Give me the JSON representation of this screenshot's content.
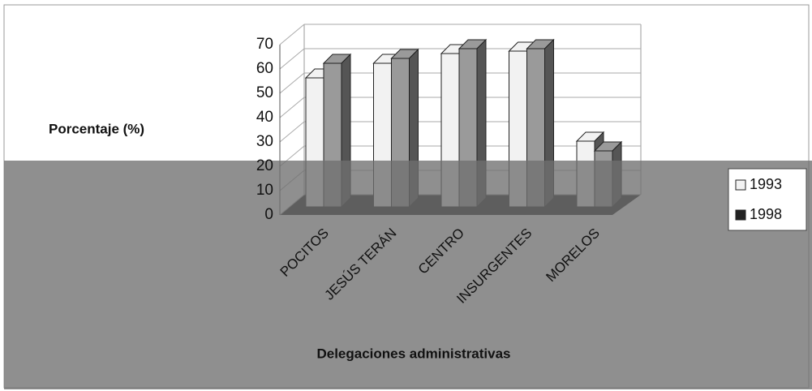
{
  "chart_data": {
    "type": "bar3d",
    "categories": [
      "POCITOS",
      "JESÚS TERÁN",
      "CENTRO",
      "INSURGENTES",
      "MORELOS"
    ],
    "series": [
      {
        "name": "1993",
        "color": "#f2f2f2",
        "values": [
          53,
          59,
          63,
          64,
          27
        ]
      },
      {
        "name": "1998",
        "color": "#9a9a9a",
        "values": [
          59,
          61,
          65,
          65,
          23
        ]
      }
    ],
    "ylim": [
      0,
      70
    ],
    "yticks": [
      0,
      10,
      20,
      30,
      40,
      50,
      60,
      70
    ],
    "y_label": "Porcentaje (%)",
    "x_label": "Delegaciones administrativas",
    "grid": true,
    "legend": "right"
  }
}
